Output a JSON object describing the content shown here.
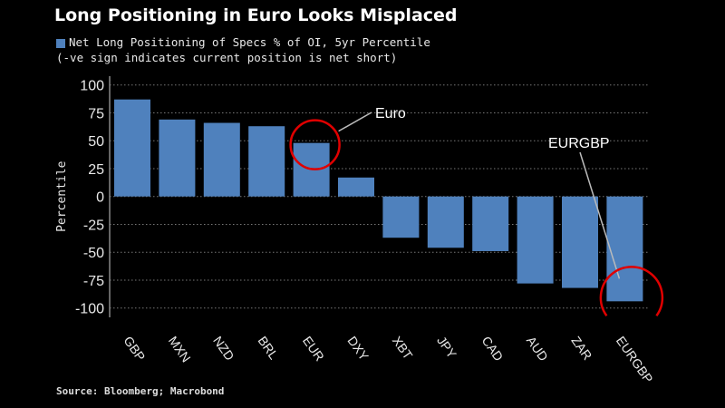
{
  "chart_data": {
    "type": "bar",
    "title": "Long Positioning in Euro Looks Misplaced",
    "legend": [
      "Net Long Positioning of Specs % of OI, 5yr Percentile",
      "(-ve sign indicates current position is net short)"
    ],
    "ylabel": "Percentile",
    "xlabel": "",
    "ylim": [
      -100,
      100
    ],
    "yticks": [
      100,
      75,
      50,
      25,
      0,
      -25,
      -50,
      -75,
      -100
    ],
    "grid": true,
    "categories": [
      "GBP",
      "MXN",
      "NZD",
      "BRL",
      "EUR",
      "DXY",
      "XBT",
      "JPY",
      "CAD",
      "AUD",
      "ZAR",
      "EURGBP"
    ],
    "values": [
      87,
      69,
      66,
      63,
      48,
      17,
      -37,
      -46,
      -49,
      -78,
      -82,
      -94
    ],
    "bar_color": "#4f81bd",
    "annotations": [
      {
        "text": "Euro",
        "category": "EUR",
        "highlight_color": "#e00000"
      },
      {
        "text": "EURGBP",
        "category": "EURGBP",
        "highlight_color": "#e00000"
      }
    ],
    "source": "Source: Bloomberg; Macrobond"
  }
}
